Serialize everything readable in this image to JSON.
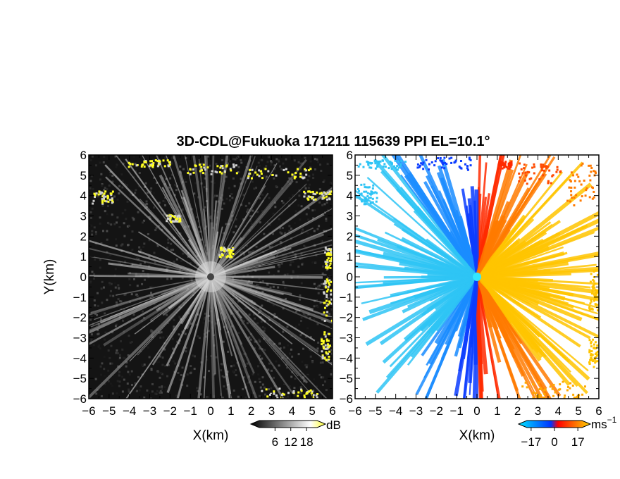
{
  "title": "3D-CDL@Fukuoka 171211 115639 PPI EL=10.1°",
  "chart_data": [
    {
      "type": "heatmap",
      "quantity": "reflectivity",
      "xlabel": "X(km)",
      "ylabel": "Y(km)",
      "xlim": [
        -6,
        6
      ],
      "ylim": [
        -6,
        6
      ],
      "xticks": [
        "−6",
        "−5",
        "−4",
        "−3",
        "−2",
        "−1",
        "0",
        "1",
        "2",
        "3",
        "4",
        "5",
        "6"
      ],
      "yticks": [
        "6",
        "5",
        "4",
        "3",
        "2",
        "1",
        "0",
        "−1",
        "−2",
        "−3",
        "−4",
        "−5",
        "−6"
      ],
      "colorbar": {
        "unit": "dB",
        "tick_labels": [
          "6",
          "12",
          "18"
        ],
        "ticks": [
          6,
          12,
          18
        ],
        "range": [
          0,
          22
        ],
        "colors": [
          "#000000",
          "#ffffff",
          "#ffff33"
        ]
      }
    },
    {
      "type": "heatmap",
      "quantity": "doppler-velocity",
      "xlabel": "X(km)",
      "xlim": [
        -6,
        6
      ],
      "ylim": [
        -6,
        6
      ],
      "xticks": [
        "−6",
        "−5",
        "−4",
        "−3",
        "−2",
        "−1",
        "0",
        "1",
        "2",
        "3",
        "4",
        "5",
        "6"
      ],
      "yticks": [
        "6",
        "5",
        "4",
        "3",
        "2",
        "1",
        "0",
        "−1",
        "−2",
        "−3",
        "−4",
        "−5",
        "−6"
      ],
      "colorbar": {
        "unit": "ms",
        "unit_exponent": "−1",
        "tick_labels": [
          "−17",
          "0",
          "17"
        ],
        "ticks": [
          -17,
          0,
          17
        ],
        "range": [
          -20,
          20
        ],
        "colors": [
          "#00e5ff",
          "#0033ff",
          "#ff0000",
          "#ffd400"
        ]
      }
    }
  ]
}
